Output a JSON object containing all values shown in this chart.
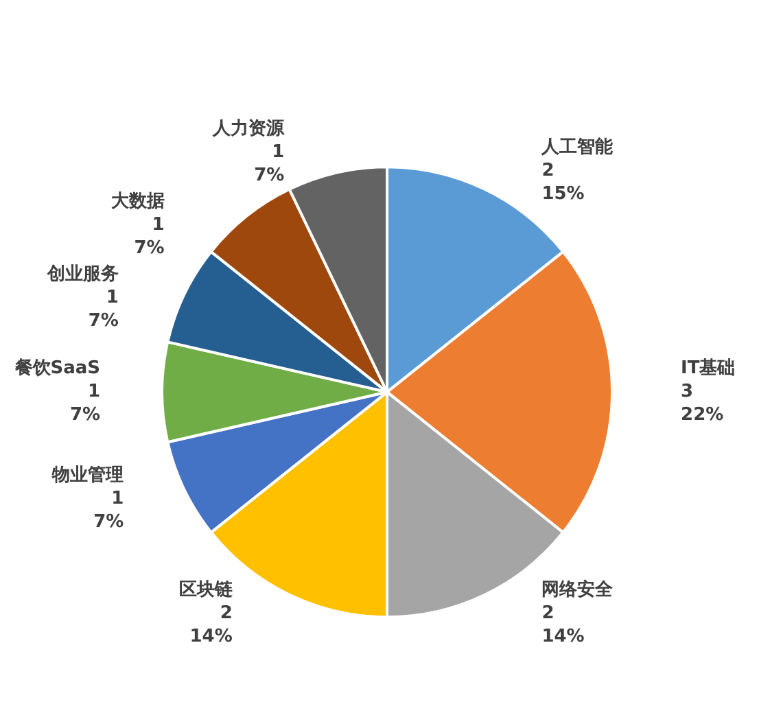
{
  "chart_data": {
    "type": "pie",
    "categories": [
      "人工智能",
      "IT基础",
      "网络安全",
      "区块链",
      "物业管理",
      "餐饮SaaS",
      "创业服务",
      "大数据",
      "人力资源"
    ],
    "values": [
      2,
      3,
      2,
      2,
      1,
      1,
      1,
      1,
      1
    ],
    "value_labels": [
      "2\n15%",
      "3\n22%",
      "2\n14%",
      "2\n14%",
      "1\n7%",
      "1\n7%",
      "1\n7%",
      "1\n7%",
      "1\n7%"
    ],
    "colors": [
      "#5b9bd5",
      "#ed7d31",
      "#a5a5a5",
      "#ffc000",
      "#4472c4",
      "#70ad47",
      "#255e91",
      "#9e480e",
      "#636363"
    ],
    "legend": false
  }
}
